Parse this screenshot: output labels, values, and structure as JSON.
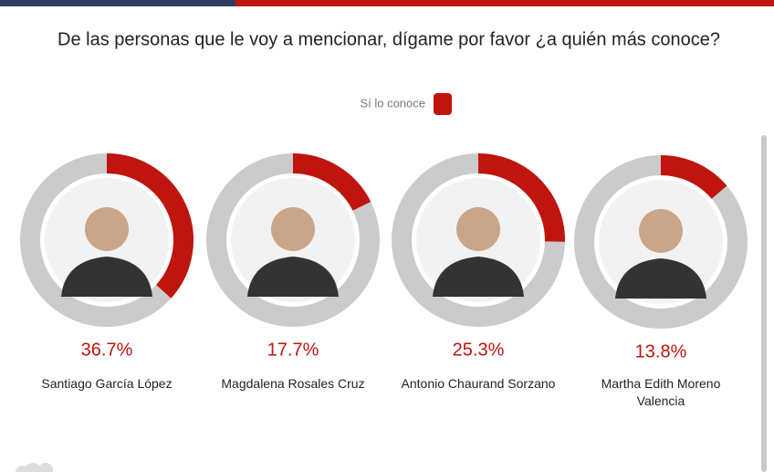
{
  "chart_data": {
    "type": "donut",
    "title": "De las personas que le voy a mencionar, dígame por favor ¿a quién más conoce?",
    "categories": [
      "Santiago García López",
      "Magdalena Rosales Cruz",
      "Antonio Chaurand Sorzano",
      "Martha Edith Moreno Valencia"
    ],
    "series": [
      {
        "name": "Sí lo conoce",
        "color": "#c0140f",
        "values": [
          36.7,
          17.7,
          25.3,
          13.8
        ],
        "value_labels": [
          "36.7%",
          "17.7%",
          "25.3%",
          "13.8%"
        ]
      }
    ],
    "track_color": "#cbcbcb"
  }
}
